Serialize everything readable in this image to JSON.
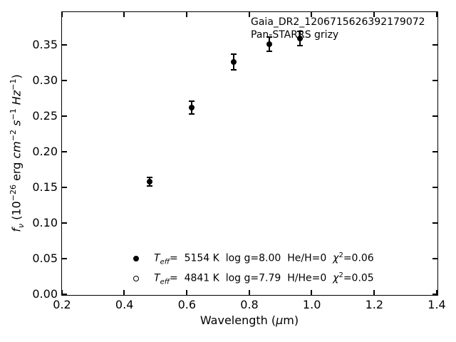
{
  "figure": {
    "annotation": {
      "line1": "Gaia_DR2_1206715626392179072",
      "line2": "Pan-STARRS grizy"
    },
    "xlabel_parts": {
      "pre": "Wavelength (",
      "mu": "μ",
      "post": "m)"
    },
    "ylabel_parts": {
      "f": "f",
      "nu": "ν",
      "p1": " (10",
      "e1": "−26",
      "p2": " erg ",
      "cm": "cm",
      "e2": "−2",
      "sp1": " ",
      "s": "s",
      "e3": "−1",
      "sp2": " ",
      "hz": "Hz",
      "e4": "−1",
      "p3": ")"
    }
  },
  "legend": {
    "rows": [
      {
        "marker": "filled-circle",
        "t": "T",
        "tsub": "eff",
        "mid": "=  5154 K  log g=8.00  He/H=0  ",
        "chi": "χ",
        "chisup": "2",
        "end": "=0.06"
      },
      {
        "marker": "open-circle",
        "t": "T",
        "tsub": "eff",
        "mid": "=  4841 K  log g=7.79  H/He=0  ",
        "chi": "χ",
        "chisup": "2",
        "end": "=0.05"
      }
    ]
  },
  "chart_data": {
    "type": "scatter",
    "title": "",
    "xlabel": "Wavelength (μm)",
    "ylabel": "f_ν (10^−26 erg cm^−2 s^−1 Hz^−1)",
    "xlim": [
      0.2,
      1.4
    ],
    "ylim": [
      0,
      0.396
    ],
    "xticks": [
      "0.2",
      "0.4",
      "0.6",
      "0.8",
      "1.0",
      "1.2",
      "1.4"
    ],
    "yticks": [
      "0.00",
      "0.05",
      "0.10",
      "0.15",
      "0.20",
      "0.25",
      "0.30",
      "0.35"
    ],
    "grid": false,
    "tick_direction": "in",
    "box": true,
    "legend_position": "lower-left-inside",
    "annotations": [
      "Gaia_DR2_1206715626392179072",
      "Pan-STARRS grizy"
    ],
    "series": [
      {
        "name": "Teff= 5154 K log g=8.00 He/H=0 chi2=0.06",
        "marker": "filled-circle",
        "color": "#000000",
        "points": [
          {
            "band": "g",
            "x": 0.481,
            "y": 0.158,
            "yerr": 0.006
          },
          {
            "band": "r",
            "x": 0.617,
            "y": 0.262,
            "yerr": 0.009
          },
          {
            "band": "i",
            "x": 0.752,
            "y": 0.326,
            "yerr": 0.011
          },
          {
            "band": "z",
            "x": 0.866,
            "y": 0.351,
            "yerr": 0.01
          },
          {
            "band": "y",
            "x": 0.962,
            "y": 0.359,
            "yerr": 0.01
          }
        ]
      },
      {
        "name": "Teff= 4841 K log g=7.79 H/He=0 chi2=0.05",
        "marker": "open-circle",
        "color": "#000000",
        "points": []
      }
    ]
  },
  "colors": {
    "foreground": "#000000",
    "background": "#ffffff"
  }
}
